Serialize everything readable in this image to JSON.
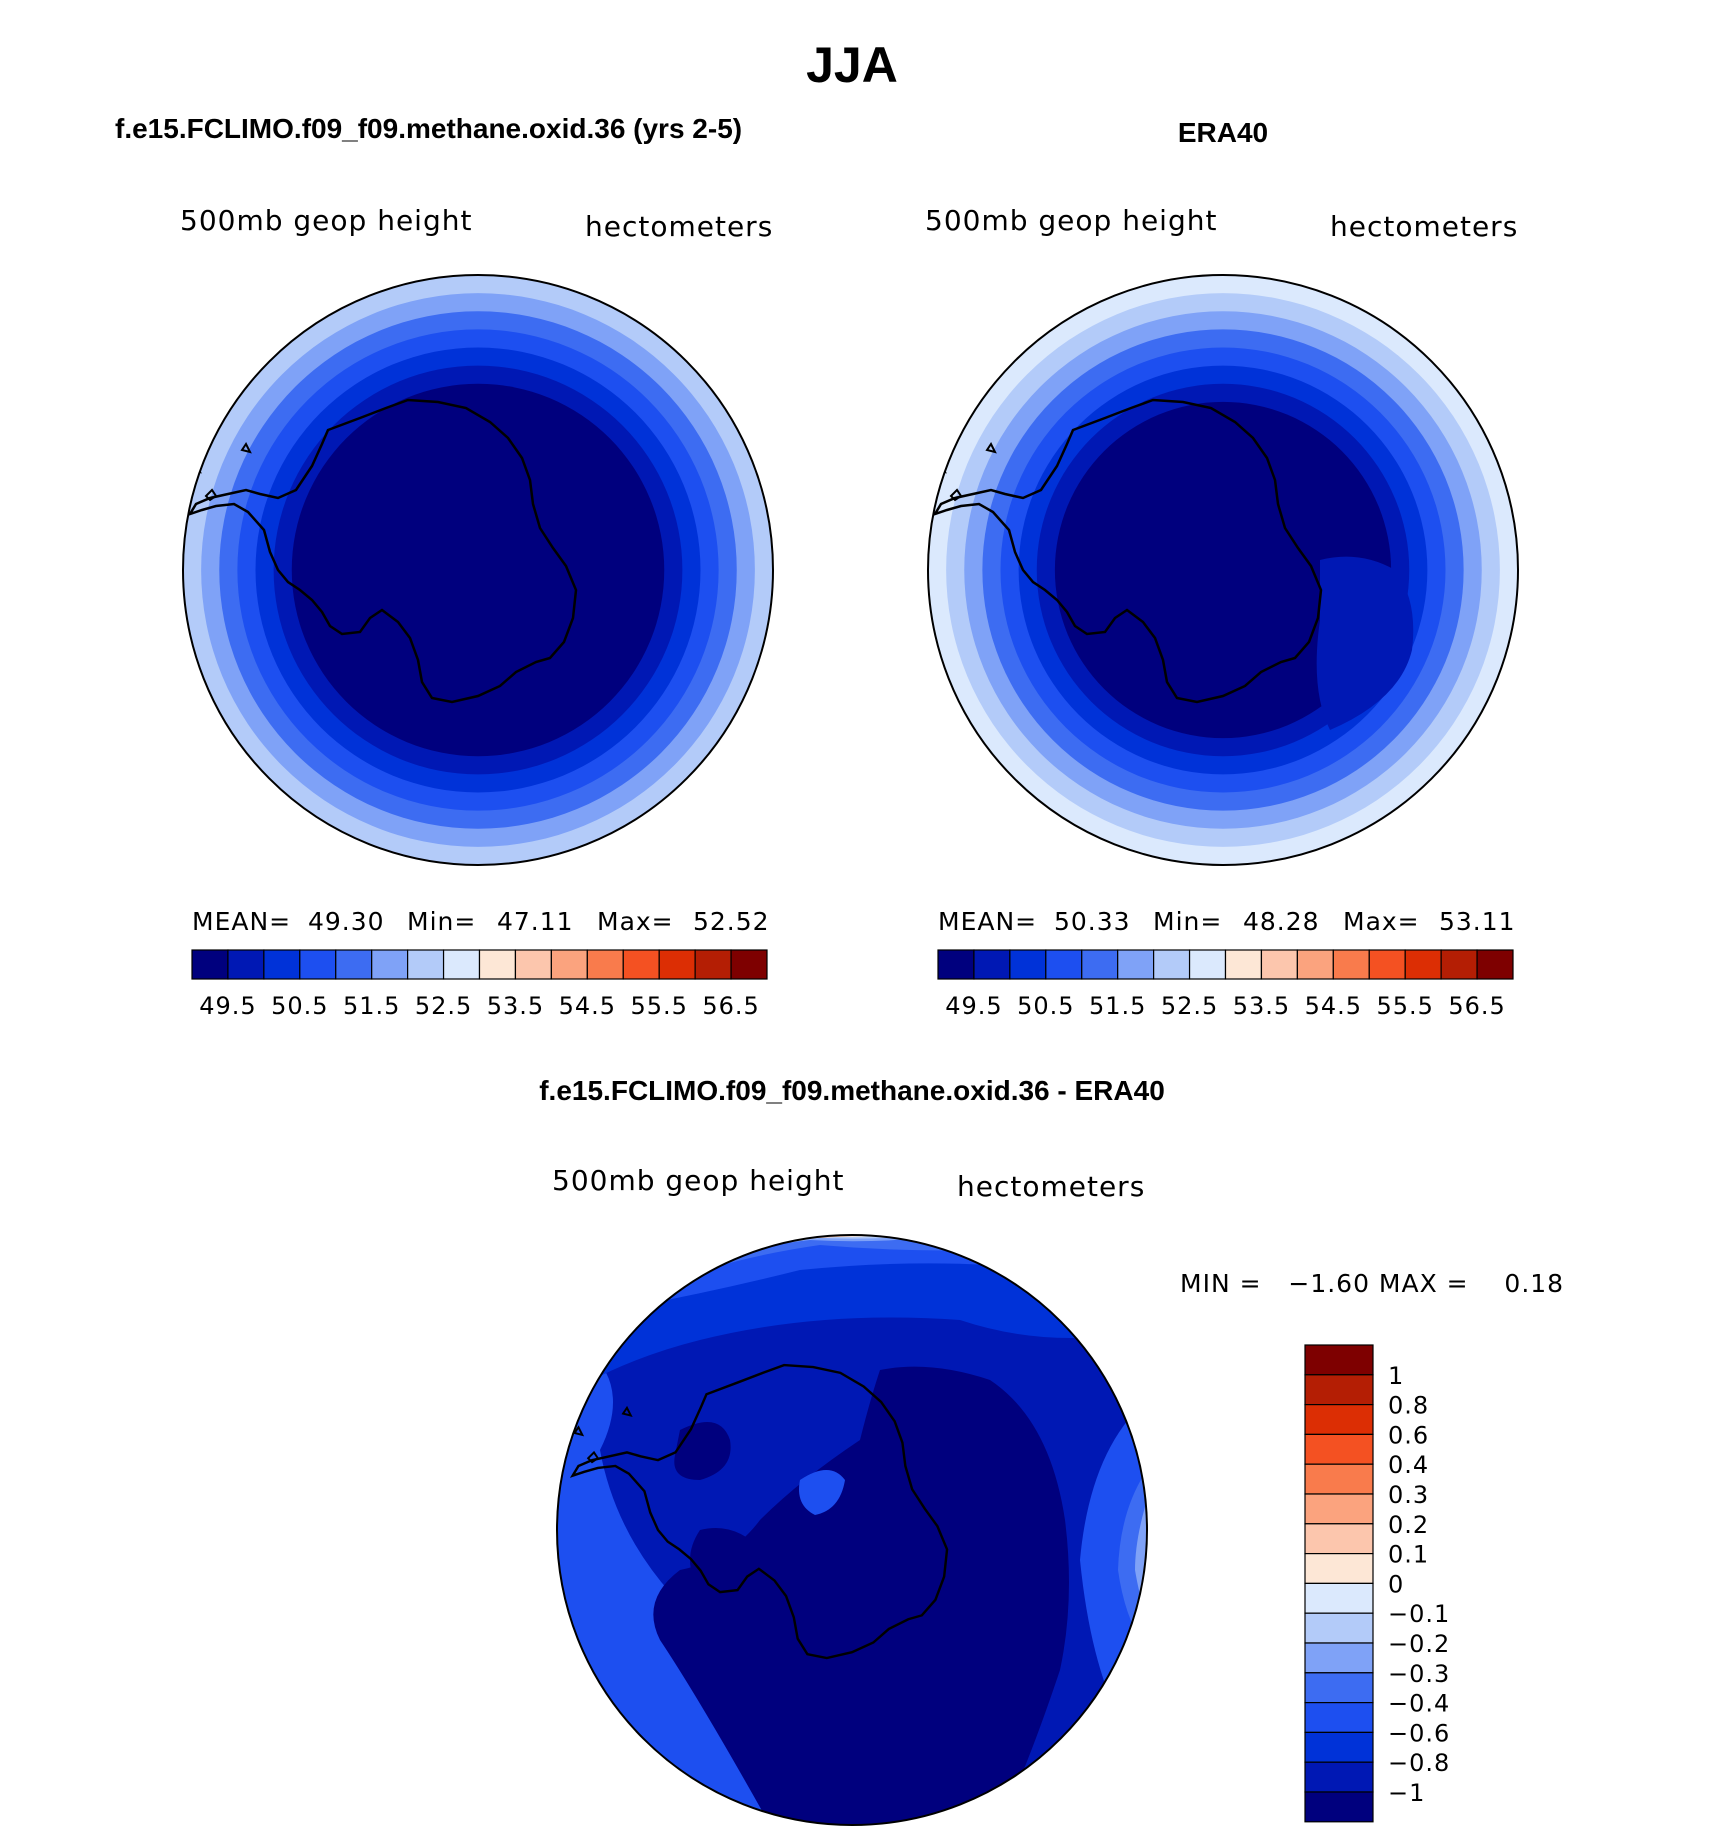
{
  "main_title": "JJA",
  "panels": {
    "model": {
      "title": "f.e15.FCLIMO.f09_f09.methane.oxid.36 (yrs 2-5)",
      "left_label": "500mb geop height",
      "right_label": "hectometers",
      "stats": {
        "mean_label": "MEAN=",
        "mean": "49.30",
        "min_label": "Min=",
        "min": "47.11",
        "max_label": "Max=",
        "max": "52.52"
      }
    },
    "obs": {
      "title": "ERA40",
      "left_label": "500mb geop height",
      "right_label": "hectometers",
      "stats": {
        "mean_label": "MEAN=",
        "mean": "50.33",
        "min_label": "Min=",
        "min": "48.28",
        "max_label": "Max=",
        "max": "53.11"
      }
    },
    "diff": {
      "title": "f.e15.FCLIMO.f09_f09.methane.oxid.36 - ERA40",
      "left_label": "500mb geop height",
      "right_label": "hectometers",
      "minmax_text": "MIN =   −1.60 MAX =    0.18"
    }
  },
  "chart_data": [
    {
      "type": "heatmap",
      "name": "model",
      "projection": "south-polar-stereographic",
      "field": "500mb geopotential height",
      "units": "hectometers",
      "mean": 49.3,
      "min": 47.11,
      "max": 52.52,
      "contour_levels": [
        49.5,
        50,
        50.5,
        51,
        51.5,
        52,
        52.5,
        53,
        53.5,
        54,
        54.5,
        55,
        55.5,
        56,
        56.5
      ],
      "colorbar_tick_labels": [
        "49.5",
        "50.5",
        "51.5",
        "52.5",
        "53.5",
        "54.5",
        "55.5",
        "56.5"
      ],
      "ring_band_indices": [
        0,
        0,
        1,
        2,
        3,
        4,
        5,
        6
      ]
    },
    {
      "type": "heatmap",
      "name": "obs",
      "projection": "south-polar-stereographic",
      "field": "500mb geopotential height",
      "units": "hectometers",
      "mean": 50.33,
      "min": 48.28,
      "max": 53.11,
      "contour_levels": [
        49.5,
        50,
        50.5,
        51,
        51.5,
        52,
        52.5,
        53,
        53.5,
        54,
        54.5,
        55,
        55.5,
        56,
        56.5
      ],
      "colorbar_tick_labels": [
        "49.5",
        "50.5",
        "51.5",
        "52.5",
        "53.5",
        "54.5",
        "55.5",
        "56.5"
      ],
      "ring_band_indices": [
        0,
        1,
        2,
        3,
        4,
        5,
        6,
        7
      ]
    },
    {
      "type": "heatmap",
      "name": "difference",
      "projection": "south-polar-stereographic",
      "field": "500mb geopotential height difference",
      "units": "hectometers",
      "min": -1.6,
      "max": 0.18,
      "contour_levels": [
        -1,
        -0.8,
        -0.6,
        -0.4,
        -0.3,
        -0.2,
        -0.1,
        0,
        0.1,
        0.2,
        0.3,
        0.4,
        0.6,
        0.8,
        1
      ],
      "colorbar_tick_labels": [
        "1",
        "0.8",
        "0.6",
        "0.4",
        "0.3",
        "0.2",
        "0.1",
        "0",
        "−0.1",
        "−0.2",
        "−0.3",
        "−0.4",
        "−0.6",
        "−0.8",
        "−1"
      ]
    }
  ],
  "colors": {
    "palette": [
      "#00007e",
      "#0018b4",
      "#0032d8",
      "#1d4ff0",
      "#3d6cf2",
      "#7fa2f7",
      "#b3cbf9",
      "#dbe9fd",
      "#fde7d6",
      "#fcc6ad",
      "#fba37e",
      "#f97b4c",
      "#f45122",
      "#dc2e04",
      "#b41e04",
      "#7e0000"
    ],
    "coast": "#000000",
    "outline": "#000000"
  }
}
